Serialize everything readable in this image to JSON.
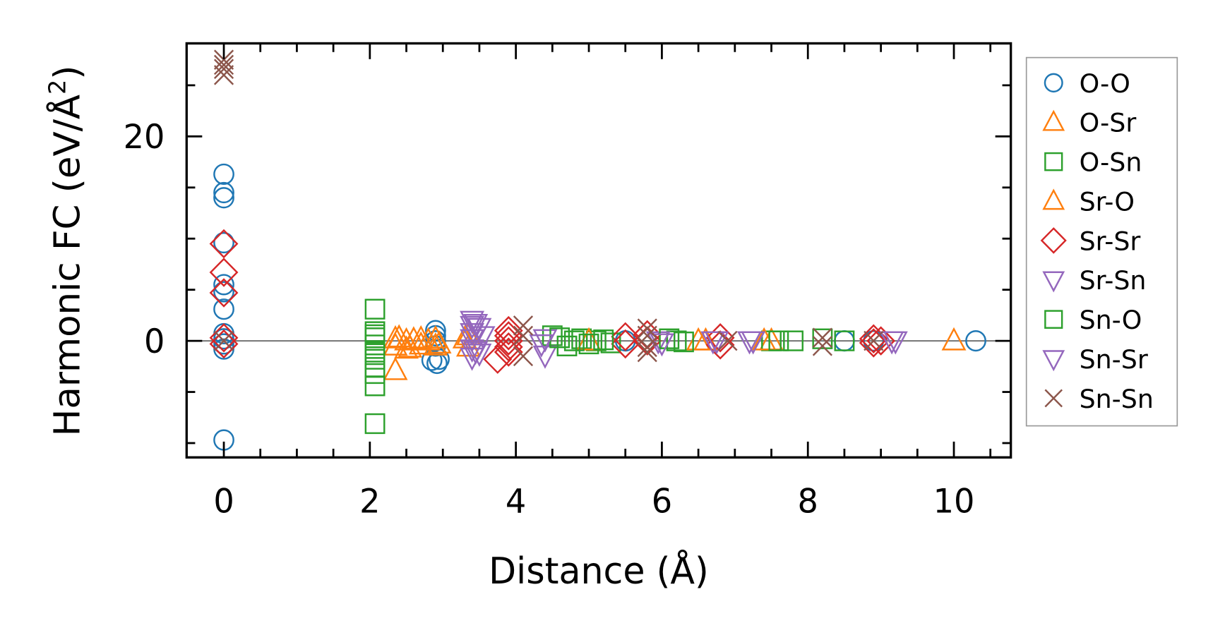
{
  "chart_data": {
    "type": "scatter",
    "title": "",
    "xlabel": "Distance (Å)",
    "ylabel_main": "Harmonic FC (eV/Å",
    "ylabel_sup": "2",
    "ylabel_close": ")",
    "xlim": [
      -0.51,
      10.78
    ],
    "ylim": [
      -11.4,
      29.1
    ],
    "xticks": [
      0,
      2,
      4,
      6,
      8,
      10
    ],
    "xtick_labels": [
      "0",
      "2",
      "4",
      "6",
      "8",
      "10"
    ],
    "yticks": [
      0,
      20
    ],
    "ytick_labels": [
      "0",
      "20"
    ],
    "x_minor_step": 0.5,
    "y_minor_step": 5,
    "zero_line": 0,
    "grid": false,
    "legend_position": "outside-right",
    "series": [
      {
        "name": "O-O",
        "marker": "circle",
        "color": "#1f77b4",
        "x": [
          0,
          0,
          0,
          0,
          0,
          0,
          0,
          0,
          0,
          0,
          0,
          0,
          2.9,
          2.9,
          2.9,
          2.9,
          2.92,
          2.85,
          2.95,
          5.5,
          8.5,
          8.9,
          10.3
        ],
        "y": [
          16.3,
          14.5,
          14.0,
          9.6,
          5.5,
          4.8,
          3.1,
          0.7,
          0.2,
          -0.3,
          -0.8,
          -9.7,
          1.0,
          0.5,
          0,
          -0.5,
          -2.2,
          -1.9,
          -1.8,
          0,
          0,
          0,
          0
        ]
      },
      {
        "name": "O-Sr",
        "marker": "triangle-up",
        "color": "#ff7f0e",
        "x": [
          2.35,
          2.35,
          2.35,
          2.5,
          2.5,
          2.7,
          2.7,
          2.9,
          2.9,
          3.35,
          3.35,
          6.5,
          7.5,
          10.0
        ],
        "y": [
          0.2,
          -0.5,
          -2.9,
          -0.8,
          0,
          0.2,
          -0.4,
          0.2,
          -0.5,
          0.5,
          -0.6,
          0,
          0,
          0
        ]
      },
      {
        "name": "O-Sn",
        "marker": "square",
        "color": "#2ca02c",
        "x": [
          2.07,
          2.07,
          2.07,
          2.07,
          2.07,
          2.07,
          2.07,
          2.07,
          2.07,
          4.5,
          4.7,
          4.9,
          5.1,
          5.3,
          6.2,
          7.5,
          7.8,
          8.2,
          8.5
        ],
        "y": [
          3.1,
          0.9,
          0.3,
          -0.4,
          -1.1,
          -1.8,
          -3.2,
          -4.4,
          -8.1,
          0.5,
          -0.5,
          0.2,
          0,
          -0.2,
          0,
          0,
          0,
          0.2,
          0
        ]
      },
      {
        "name": "Sr-O",
        "marker": "triangle-up",
        "color": "#ff7f0e",
        "x": [
          2.4,
          2.55,
          2.6,
          2.8,
          2.95,
          3.3,
          5.0,
          6.6,
          7.4
        ],
        "y": [
          0.3,
          -0.7,
          0.1,
          0,
          -0.3,
          0.2,
          0,
          0,
          0
        ]
      },
      {
        "name": "Sr-Sr",
        "marker": "diamond",
        "color": "#d62728",
        "x": [
          0,
          0,
          0,
          0,
          0,
          3.9,
          3.9,
          3.9,
          3.9,
          3.9,
          3.75,
          5.5,
          5.5,
          5.8,
          5.8,
          6.8,
          6.8,
          8.9,
          8.9,
          9.0
        ],
        "y": [
          9.5,
          6.7,
          4.7,
          0.3,
          -0.3,
          1.0,
          0.5,
          0,
          -0.6,
          -1.1,
          -1.8,
          0.4,
          -0.3,
          0,
          0.6,
          0.3,
          -0.4,
          0.2,
          -0.2,
          0
        ]
      },
      {
        "name": "Sr-Sn",
        "marker": "triangle-down",
        "color": "#9467bd",
        "x": [
          3.4,
          3.4,
          3.4,
          3.4,
          3.4,
          3.4,
          3.5,
          3.5,
          4.4,
          4.4,
          5.95,
          6.7,
          7.2,
          9.2
        ],
        "y": [
          2.0,
          1.5,
          0.8,
          0.2,
          -0.8,
          -1.6,
          1.3,
          -1.2,
          0.2,
          -1.4,
          0,
          0,
          0,
          0
        ]
      },
      {
        "name": "Sn-O",
        "marker": "square",
        "color": "#2ca02c",
        "x": [
          2.07,
          2.07,
          4.6,
          4.8,
          5.0,
          5.2,
          6.1,
          6.3,
          7.6
        ],
        "y": [
          0.6,
          -2.6,
          0.3,
          0,
          -0.3,
          0.1,
          0.2,
          -0.1,
          0
        ]
      },
      {
        "name": "Sn-Sr",
        "marker": "triangle-down",
        "color": "#9467bd",
        "x": [
          3.45,
          3.45,
          3.55,
          4.35,
          6.0,
          6.75,
          7.25,
          9.15
        ],
        "y": [
          1.7,
          -1.0,
          0.5,
          -0.3,
          -0.2,
          0,
          0,
          0
        ]
      },
      {
        "name": "Sn-Sn",
        "marker": "x",
        "color": "#8c564b",
        "x": [
          0,
          0,
          0,
          0,
          0,
          4.1,
          4.1,
          4.1,
          5.8,
          5.8,
          5.8,
          5.8,
          6.9,
          8.2,
          8.2,
          8.9
        ],
        "y": [
          27.5,
          27.0,
          26.6,
          26.0,
          0,
          1.5,
          -1.5,
          0.5,
          1.2,
          -1.1,
          0.5,
          -0.6,
          0,
          0.3,
          -0.5,
          0
        ]
      }
    ]
  }
}
